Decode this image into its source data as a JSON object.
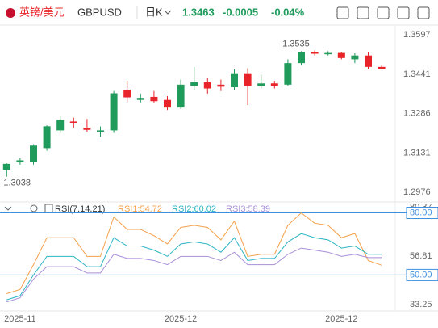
{
  "header": {
    "name": "英镑/美元",
    "symbol": "GBPUSD",
    "period": "日K",
    "price": "1.3463",
    "change": "-0.0005",
    "change_pct": "-0.04%"
  },
  "chart_data": [
    {
      "type": "candlestick",
      "categories": [
        null,
        "2025-11",
        null,
        null,
        null,
        null,
        null,
        null,
        null,
        null,
        null,
        null,
        null,
        "2025-12",
        null,
        null,
        null,
        null,
        null,
        null,
        null,
        null,
        null,
        null,
        null,
        "2025-12",
        null,
        null,
        null
      ],
      "open": [
        1.3065,
        1.3095,
        1.3097,
        1.315,
        1.322,
        1.3255,
        1.323,
        1.3215,
        1.322,
        1.338,
        1.334,
        1.3352,
        1.334,
        1.331,
        1.3395,
        1.341,
        1.34,
        1.339,
        1.3445,
        1.3395,
        1.3405,
        1.34,
        1.3485,
        1.353,
        1.352,
        1.3528,
        1.35,
        1.3515,
        1.347
      ],
      "high": [
        1.309,
        1.311,
        1.3165,
        1.324,
        1.3275,
        1.327,
        1.3265,
        1.3235,
        1.3375,
        1.3415,
        1.3365,
        1.3375,
        1.3355,
        1.342,
        1.347,
        1.3425,
        1.342,
        1.346,
        1.3465,
        1.344,
        1.3415,
        1.35,
        1.3532,
        1.3535,
        1.3532,
        1.353,
        1.3525,
        1.353,
        1.3475
      ],
      "low": [
        1.3038,
        1.3085,
        1.3085,
        1.314,
        1.321,
        1.323,
        1.3215,
        1.3195,
        1.321,
        1.333,
        1.333,
        1.333,
        1.33,
        1.3305,
        1.338,
        1.3365,
        1.3375,
        1.338,
        1.332,
        1.3385,
        1.3385,
        1.3395,
        1.3478,
        1.3515,
        1.3515,
        1.35,
        1.3485,
        1.346,
        1.3462
      ],
      "close": [
        1.3088,
        1.3102,
        1.316,
        1.3236,
        1.3262,
        1.325,
        1.3222,
        1.322,
        1.3366,
        1.335,
        1.3348,
        1.3335,
        1.331,
        1.34,
        1.341,
        1.3385,
        1.3392,
        1.3445,
        1.3395,
        1.3405,
        1.3395,
        1.3485,
        1.353,
        1.3522,
        1.3528,
        1.3505,
        1.3515,
        1.347,
        1.3463
      ],
      "up_color": "#1f9b5c",
      "down_color": "#e8242a",
      "ylim": [
        1.2938,
        1.3635
      ],
      "yticks": [
        1.2976,
        1.3131,
        1.3286,
        1.3441,
        1.3597
      ],
      "annotations": [
        {
          "text": "1.3535",
          "value": 1.3535
        },
        {
          "text": "1.3038",
          "value": 1.3038
        }
      ]
    },
    {
      "type": "line",
      "title": "RSI(7,14,21)",
      "series": [
        {
          "name": "RSI1:54.72",
          "color": "#f5a04a",
          "values": [
            41,
            43,
            55,
            68,
            68,
            68,
            59,
            59,
            78,
            72,
            72,
            69,
            65,
            73,
            74,
            73,
            67,
            76,
            59,
            60,
            60,
            74,
            80,
            75,
            74,
            68,
            70,
            57,
            54.72
          ]
        },
        {
          "name": "RSI2:60.02",
          "color": "#2bb5c4",
          "values": [
            38,
            40,
            50,
            59,
            59,
            59,
            54,
            54,
            68,
            64,
            64,
            62,
            59,
            65,
            66,
            65,
            61,
            68,
            57,
            58,
            58,
            66,
            70,
            68,
            67,
            63,
            64,
            60,
            60.02
          ]
        },
        {
          "name": "RSI3:58.39",
          "color": "#a88fd8",
          "values": [
            37,
            39,
            48,
            54,
            54,
            54,
            51,
            51,
            60,
            58,
            58,
            57,
            55,
            59,
            59,
            59,
            57,
            61,
            55,
            55,
            55,
            60,
            63,
            62,
            61,
            59,
            60,
            58.4,
            58.39
          ]
        }
      ],
      "ylim": [
        32.6,
        85.27
      ],
      "yticks": [
        33.25,
        56.81,
        80.37
      ],
      "ref_lines": [
        {
          "value": 80,
          "label": "80.00"
        },
        {
          "value": 50,
          "label": "50.00"
        }
      ],
      "ref_color": "#3d8fe0"
    }
  ]
}
